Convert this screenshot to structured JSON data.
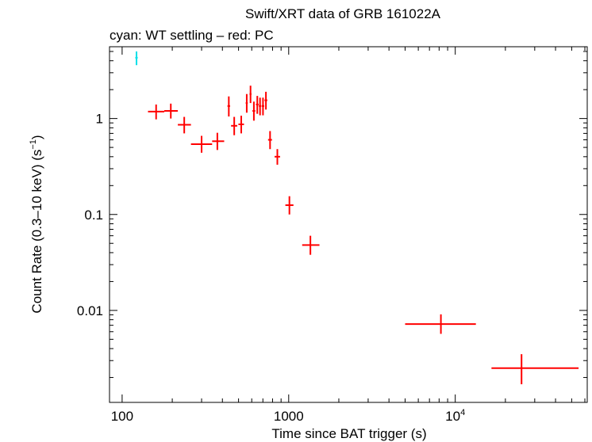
{
  "chart_data": {
    "type": "scatter",
    "title": "Swift/XRT data of GRB 161022A",
    "subtitle": "cyan: WT settling – red: PC",
    "xlabel": "Time since BAT trigger (s)",
    "ylabel": "Count Rate (0.3–10 keV) (s",
    "ylabel_sup": "−1",
    "ylabel_end": ")",
    "x_scale": "log",
    "y_scale": "log",
    "xlim": [
      84,
      62000
    ],
    "ylim": [
      0.0011,
      5.6
    ],
    "grid": false,
    "legend": "none",
    "x_ticks": [
      {
        "value": 100,
        "label": "100"
      },
      {
        "value": 1000,
        "label": "1000"
      },
      {
        "value": 10000,
        "label": "10",
        "sup": "4"
      }
    ],
    "y_ticks": [
      {
        "value": 1,
        "label": "1"
      },
      {
        "value": 0.1,
        "label": "0.1"
      },
      {
        "value": 0.01,
        "label": "0.01"
      }
    ],
    "series": [
      {
        "color": "#00e0e8",
        "points": [
          {
            "x": 122,
            "xlo": 120,
            "xhi": 124,
            "y": 4.3,
            "ylo": 3.6,
            "yhi": 5.0
          }
        ]
      },
      {
        "color": "#ff0000",
        "points": [
          {
            "x": 160,
            "xlo": 143,
            "xhi": 179,
            "y": 1.18,
            "ylo": 0.98,
            "yhi": 1.4
          },
          {
            "x": 196,
            "xlo": 179,
            "xhi": 216,
            "y": 1.2,
            "ylo": 1.0,
            "yhi": 1.43
          },
          {
            "x": 236,
            "xlo": 216,
            "xhi": 259,
            "y": 0.86,
            "ylo": 0.7,
            "yhi": 1.04
          },
          {
            "x": 300,
            "xlo": 259,
            "xhi": 347,
            "y": 0.54,
            "ylo": 0.44,
            "yhi": 0.66
          },
          {
            "x": 373,
            "xlo": 347,
            "xhi": 410,
            "y": 0.58,
            "ylo": 0.47,
            "yhi": 0.71
          },
          {
            "x": 437,
            "xlo": 429,
            "xhi": 445,
            "y": 1.35,
            "ylo": 1.05,
            "yhi": 1.7
          },
          {
            "x": 471,
            "xlo": 451,
            "xhi": 491,
            "y": 0.84,
            "ylo": 0.67,
            "yhi": 1.04
          },
          {
            "x": 519,
            "xlo": 499,
            "xhi": 539,
            "y": 0.87,
            "ylo": 0.7,
            "yhi": 1.07
          },
          {
            "x": 560,
            "xlo": 552,
            "xhi": 568,
            "y": 1.45,
            "ylo": 1.15,
            "yhi": 1.8
          },
          {
            "x": 590,
            "xlo": 582,
            "xhi": 598,
            "y": 1.8,
            "ylo": 1.45,
            "yhi": 2.2
          },
          {
            "x": 618,
            "xlo": 606,
            "xhi": 630,
            "y": 1.2,
            "ylo": 0.95,
            "yhi": 1.5
          },
          {
            "x": 648,
            "xlo": 636,
            "xhi": 660,
            "y": 1.4,
            "ylo": 1.12,
            "yhi": 1.72
          },
          {
            "x": 673,
            "xlo": 662,
            "xhi": 684,
            "y": 1.35,
            "ylo": 1.08,
            "yhi": 1.65
          },
          {
            "x": 701,
            "xlo": 689,
            "xhi": 713,
            "y": 1.35,
            "ylo": 1.08,
            "yhi": 1.65
          },
          {
            "x": 730,
            "xlo": 716,
            "xhi": 744,
            "y": 1.55,
            "ylo": 1.24,
            "yhi": 1.9
          },
          {
            "x": 773,
            "xlo": 752,
            "xhi": 794,
            "y": 0.6,
            "ylo": 0.48,
            "yhi": 0.74
          },
          {
            "x": 855,
            "xlo": 823,
            "xhi": 888,
            "y": 0.4,
            "ylo": 0.33,
            "yhi": 0.48
          },
          {
            "x": 1010,
            "xlo": 955,
            "xhi": 1068,
            "y": 0.125,
            "ylo": 0.1,
            "yhi": 0.155
          },
          {
            "x": 1350,
            "xlo": 1205,
            "xhi": 1530,
            "y": 0.048,
            "ylo": 0.038,
            "yhi": 0.06
          },
          {
            "x": 8200,
            "xlo": 5000,
            "xhi": 13300,
            "y": 0.0072,
            "ylo": 0.0057,
            "yhi": 0.0091
          },
          {
            "x": 25000,
            "xlo": 16500,
            "xhi": 55000,
            "y": 0.0025,
            "ylo": 0.0017,
            "yhi": 0.0035
          }
        ]
      }
    ]
  }
}
